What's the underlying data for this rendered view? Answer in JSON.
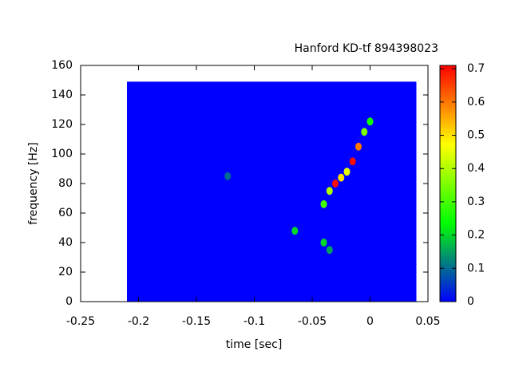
{
  "chart_data": {
    "type": "heatmap",
    "title": "Hanford KD-tf 894398023",
    "xlabel": "time [sec]",
    "ylabel": "frequency [Hz]",
    "xlim": [
      -0.25,
      0.05
    ],
    "xticks": [
      -0.25,
      -0.2,
      -0.15,
      -0.1,
      -0.05,
      0,
      0.05
    ],
    "ylim": [
      0,
      160
    ],
    "yticks": [
      0,
      20,
      40,
      60,
      80,
      100,
      120,
      140,
      160
    ],
    "clim": [
      0,
      0.71
    ],
    "cticks": [
      0,
      0.1,
      0.2,
      0.3,
      0.4,
      0.5,
      0.6,
      0.7
    ],
    "colormap": [
      "#0000ff",
      "#00ff00",
      "#ffff00",
      "#ff0000"
    ],
    "extent_x": [
      -0.21,
      0.04
    ],
    "extent_y": [
      0,
      149
    ],
    "background": 0,
    "track": {
      "x": [
        -0.04,
        -0.035,
        -0.03,
        -0.025,
        -0.02,
        -0.015,
        -0.01,
        -0.005,
        0,
        -0.065,
        -0.04,
        -0.035,
        -0.123
      ],
      "y": [
        66,
        75,
        80,
        84,
        88,
        95,
        105,
        115,
        122,
        48,
        40,
        35,
        85
      ],
      "values": [
        0.3,
        0.4,
        0.7,
        0.5,
        0.45,
        0.7,
        0.6,
        0.35,
        0.25,
        0.2,
        0.2,
        0.15,
        0.1
      ]
    }
  }
}
